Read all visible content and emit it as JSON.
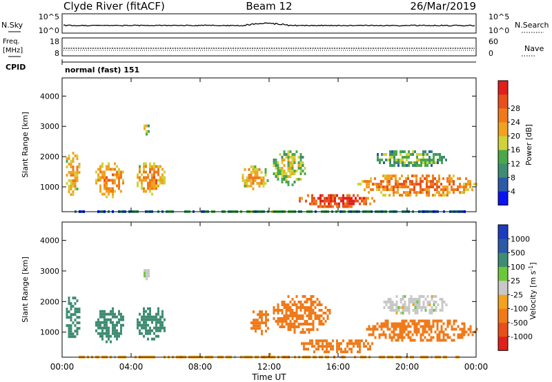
{
  "header": {
    "station": "Clyde River (fitACF)",
    "beam": "Beam 12",
    "date": "26/Mar/2019"
  },
  "top_panels": {
    "nsky_label": "N.Sky",
    "nsky_tick_top": "10^5",
    "nsky_tick_bottom": "10^0",
    "nsearch_label": "N.Search",
    "nsearch_tick_top": "10^5",
    "nsearch_tick_bottom": "10^0",
    "freq_label": "Freq.",
    "freq_unit": "[MHz]",
    "freq_tick_top": "18",
    "freq_tick_bottom": "8",
    "nave_label": "Nave",
    "nave_tick_top": "60",
    "nave_tick_bottom": "0",
    "cpid_label": "CPID",
    "cpid_value": "normal (fast) 151"
  },
  "colors": {
    "power": [
      "#0a14f0",
      "#2a5aa8",
      "#3e8c72",
      "#4aa84a",
      "#cfd23a",
      "#f2a21e",
      "#f07a1a",
      "#e8501a",
      "#e0201a"
    ],
    "velocity": [
      "#e0201a",
      "#e8501a",
      "#f07a1a",
      "#f2a21e",
      "#c8c8c8",
      "#6cc83a",
      "#3e8c72",
      "#2a5aa8",
      "#1c3cbe"
    ]
  },
  "chart_data": [
    {
      "type": "heatmap",
      "name": "power",
      "xlabel": "Time UT",
      "ylabel": "Slant Range [km]",
      "x_ticks": [
        "00:00",
        "04:00",
        "08:00",
        "12:00",
        "16:00",
        "20:00",
        "00:00"
      ],
      "xlim": [
        0,
        24
      ],
      "y_ticks": [
        1000,
        2000,
        3000,
        4000
      ],
      "ylim": [
        180,
        4600
      ],
      "colorbar_label": "Power [dB]",
      "colorbar_ticks": [
        "4",
        "8",
        "12",
        "16",
        "20",
        "24",
        "28"
      ],
      "colorbar_range": [
        0,
        32
      ],
      "regions": [
        {
          "t0": 0.1,
          "t1": 1.0,
          "r0": 750,
          "r1": 2250,
          "value": 18
        },
        {
          "t0": 1.8,
          "t1": 3.6,
          "r0": 700,
          "r1": 1900,
          "value": 20
        },
        {
          "t0": 4.2,
          "t1": 6.0,
          "r0": 800,
          "r1": 1900,
          "value": 20
        },
        {
          "t0": 4.6,
          "t1": 5.0,
          "r0": 2700,
          "r1": 3150,
          "value": 16
        },
        {
          "t0": 10.3,
          "t1": 11.9,
          "r0": 900,
          "r1": 1800,
          "value": 18
        },
        {
          "t0": 12.1,
          "t1": 14.1,
          "r0": 1100,
          "r1": 2300,
          "value": 14
        },
        {
          "t0": 13.6,
          "t1": 18.2,
          "r0": 350,
          "r1": 850,
          "value": 26
        },
        {
          "t0": 17.0,
          "t1": 24.0,
          "r0": 700,
          "r1": 1500,
          "value": 22
        },
        {
          "t0": 18.0,
          "t1": 22.3,
          "r0": 1700,
          "r1": 2300,
          "value": 12
        },
        {
          "t0": 0.0,
          "t1": 24.0,
          "r0": 180,
          "r1": 320,
          "value": 8
        }
      ]
    },
    {
      "type": "heatmap",
      "name": "velocity",
      "xlabel": "Time UT",
      "ylabel": "Slant Range [km]",
      "x_ticks": [
        "00:00",
        "04:00",
        "08:00",
        "12:00",
        "16:00",
        "20:00",
        "00:00"
      ],
      "xlim": [
        0,
        24
      ],
      "y_ticks": [
        1000,
        2000,
        3000,
        4000
      ],
      "ylim": [
        180,
        4600
      ],
      "colorbar_label": "Velocity [m s^-1]",
      "colorbar_ticks": [
        "-1000",
        "-500",
        "-100",
        "-25",
        "25",
        "100",
        "500",
        "1000"
      ],
      "regions": [
        {
          "t0": 0.1,
          "t1": 1.0,
          "r0": 750,
          "r1": 2250,
          "value": 250
        },
        {
          "t0": 1.8,
          "t1": 3.6,
          "r0": 700,
          "r1": 1900,
          "value": 250
        },
        {
          "t0": 4.2,
          "t1": 6.0,
          "r0": 800,
          "r1": 1900,
          "value": 250
        },
        {
          "t0": 4.6,
          "t1": 5.0,
          "r0": 2700,
          "r1": 3150,
          "value": 0
        },
        {
          "t0": 10.8,
          "t1": 12.0,
          "r0": 900,
          "r1": 1800,
          "value": -300
        },
        {
          "t0": 12.1,
          "t1": 15.5,
          "r0": 1000,
          "r1": 2300,
          "value": -300
        },
        {
          "t0": 13.6,
          "t1": 18.2,
          "r0": 350,
          "r1": 850,
          "value": -300
        },
        {
          "t0": 17.5,
          "t1": 24.0,
          "r0": 700,
          "r1": 1500,
          "value": -300
        },
        {
          "t0": 18.5,
          "t1": 22.3,
          "r0": 1600,
          "r1": 2300,
          "value": 0
        },
        {
          "t0": 0.0,
          "t1": 24.0,
          "r0": 180,
          "r1": 320,
          "value": -60
        }
      ]
    }
  ]
}
